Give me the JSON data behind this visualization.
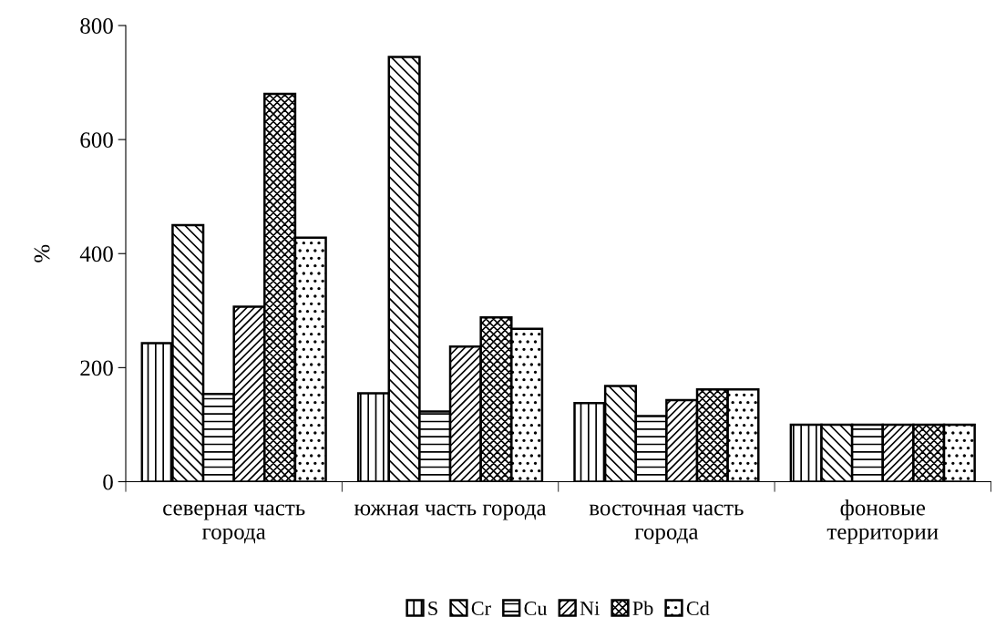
{
  "chart_data": {
    "type": "bar",
    "ylabel": "%",
    "categories": [
      "северная часть\nгорода",
      "южная часть города",
      "восточная часть\nгорода",
      "фоновые\nтерритории"
    ],
    "series": [
      {
        "name": "S",
        "color": "#000000",
        "values": [
          243,
          155,
          138,
          100
        ]
      },
      {
        "name": "Cr",
        "color": "#000000",
        "values": [
          450,
          745,
          168,
          100
        ]
      },
      {
        "name": "Cu",
        "color": "#000000",
        "values": [
          154,
          123,
          115,
          100
        ]
      },
      {
        "name": "Ni",
        "color": "#000000",
        "values": [
          307,
          237,
          143,
          100
        ]
      },
      {
        "name": "Pb",
        "color": "#000000",
        "values": [
          680,
          288,
          162,
          100
        ]
      },
      {
        "name": "Cd",
        "color": "#000000",
        "values": [
          428,
          268,
          162,
          100
        ]
      }
    ],
    "ylim": [
      0,
      800
    ],
    "yticks": [
      0,
      200,
      400,
      600,
      800
    ],
    "grid": false,
    "legend": "bottom"
  }
}
